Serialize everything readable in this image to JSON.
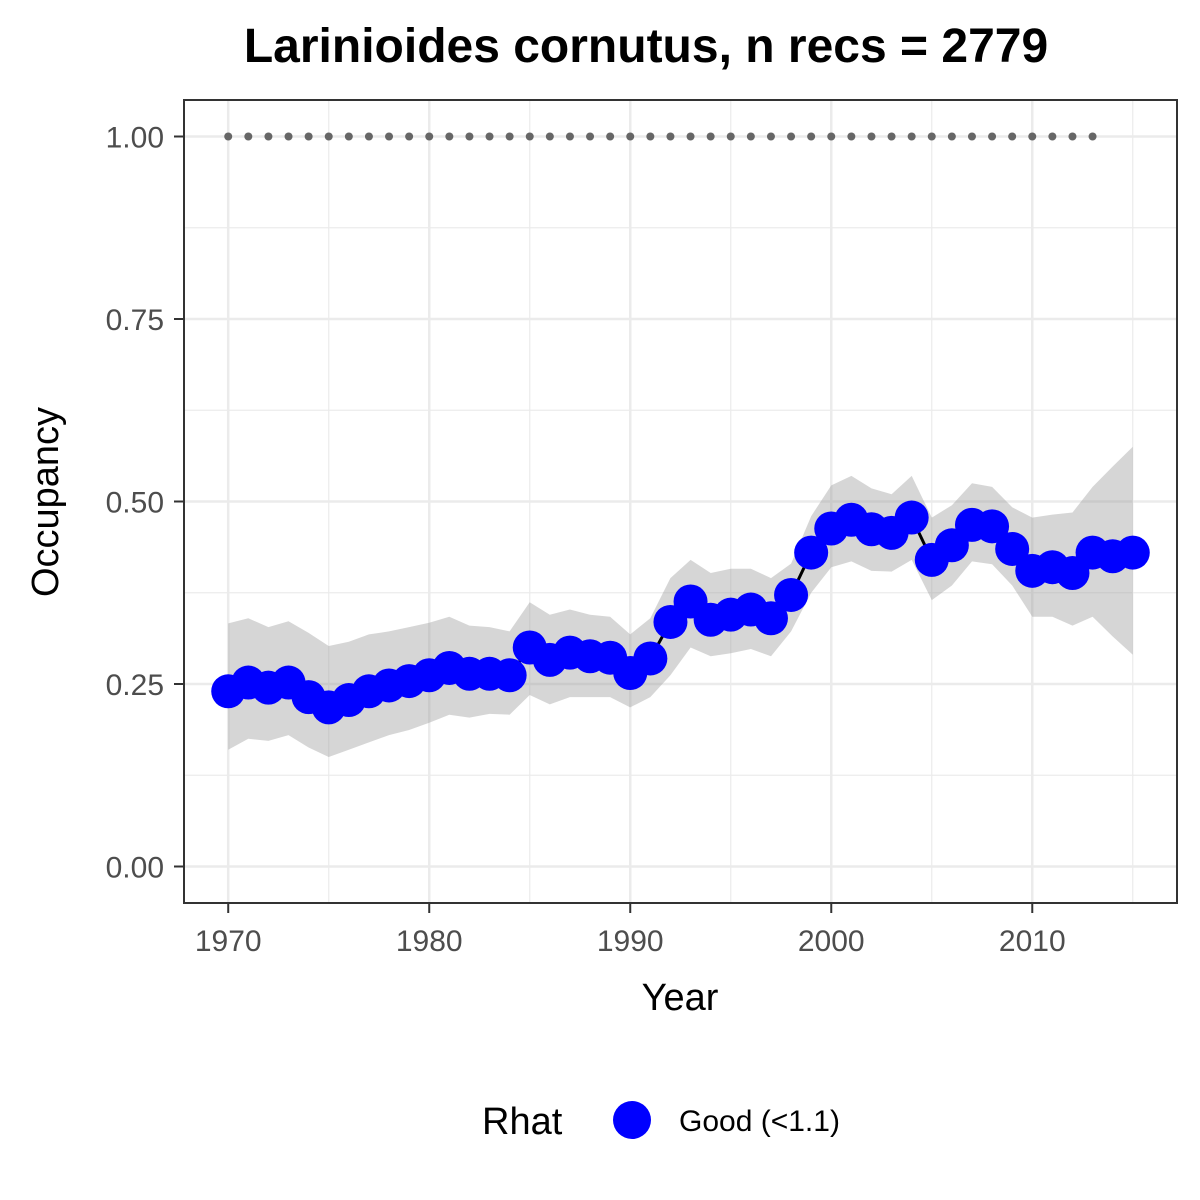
{
  "chart_data": {
    "type": "line",
    "title": "Larinioides cornutus, n recs = 2779",
    "xlabel": "Year",
    "ylabel": "Occupancy",
    "xlim": [
      1967.8,
      2017.2
    ],
    "ylim": [
      -0.05,
      1.05
    ],
    "x_ticks": [
      1970,
      1980,
      1990,
      2000,
      2010
    ],
    "x_tick_labels": [
      "1970",
      "1980",
      "1990",
      "2000",
      "2010"
    ],
    "y_ticks": [
      0,
      0.25,
      0.5,
      0.75,
      1.0
    ],
    "y_tick_labels": [
      "0.00",
      "0.25",
      "0.50",
      "0.75",
      "1.00"
    ],
    "grid": true,
    "legend": {
      "title": "Rhat",
      "position": "bottom",
      "entries": [
        {
          "label": "Good (<1.1)",
          "color": "#0000ff"
        }
      ]
    },
    "colors": {
      "points": "#0000ff",
      "line": "#000000",
      "ribbon": "#999999",
      "reference_dots": "#666666",
      "grid": "#ebebeb",
      "panel_border": "#333333"
    },
    "reference_line": {
      "y": 1.0,
      "x": [
        1970,
        1971,
        1972,
        1973,
        1974,
        1975,
        1976,
        1977,
        1978,
        1979,
        1980,
        1981,
        1982,
        1983,
        1984,
        1985,
        1986,
        1987,
        1988,
        1989,
        1990,
        1991,
        1992,
        1993,
        1994,
        1995,
        1996,
        1997,
        1998,
        1999,
        2000,
        2001,
        2002,
        2003,
        2004,
        2005,
        2006,
        2007,
        2008,
        2009,
        2010,
        2011,
        2012,
        2013
      ]
    },
    "series": [
      {
        "rhat": "Good (<1.1)",
        "x": [
          1970,
          1971,
          1972,
          1973,
          1974,
          1975,
          1976,
          1977,
          1978,
          1979,
          1980,
          1981,
          1982,
          1983,
          1984,
          1985,
          1986,
          1987,
          1988,
          1989,
          1990,
          1991,
          1992,
          1993,
          1994,
          1995,
          1996,
          1997,
          1998,
          1999,
          2000,
          2001,
          2002,
          2003,
          2004,
          2005,
          2006,
          2007,
          2008,
          2009,
          2010,
          2011,
          2012,
          2013,
          2014,
          2015
        ],
        "y": [
          0.24,
          0.252,
          0.245,
          0.252,
          0.232,
          0.218,
          0.228,
          0.24,
          0.248,
          0.254,
          0.262,
          0.272,
          0.264,
          0.264,
          0.262,
          0.3,
          0.283,
          0.293,
          0.288,
          0.286,
          0.265,
          0.285,
          0.335,
          0.363,
          0.338,
          0.345,
          0.352,
          0.34,
          0.372,
          0.43,
          0.463,
          0.475,
          0.462,
          0.457,
          0.478,
          0.42,
          0.44,
          0.468,
          0.466,
          0.435,
          0.405,
          0.41,
          0.402,
          0.43,
          0.425,
          0.43
        ],
        "lower": [
          0.16,
          0.175,
          0.172,
          0.18,
          0.163,
          0.15,
          0.16,
          0.17,
          0.18,
          0.187,
          0.197,
          0.208,
          0.204,
          0.209,
          0.208,
          0.235,
          0.222,
          0.232,
          0.232,
          0.232,
          0.218,
          0.232,
          0.262,
          0.3,
          0.288,
          0.292,
          0.298,
          0.288,
          0.322,
          0.375,
          0.41,
          0.418,
          0.405,
          0.404,
          0.42,
          0.365,
          0.385,
          0.418,
          0.414,
          0.385,
          0.342,
          0.342,
          0.33,
          0.342,
          0.315,
          0.29
        ],
        "upper": [
          0.333,
          0.34,
          0.328,
          0.336,
          0.32,
          0.302,
          0.308,
          0.318,
          0.322,
          0.328,
          0.334,
          0.342,
          0.33,
          0.328,
          0.322,
          0.362,
          0.345,
          0.352,
          0.345,
          0.342,
          0.318,
          0.34,
          0.395,
          0.42,
          0.402,
          0.408,
          0.408,
          0.395,
          0.415,
          0.48,
          0.522,
          0.535,
          0.518,
          0.51,
          0.535,
          0.478,
          0.495,
          0.525,
          0.52,
          0.492,
          0.478,
          0.482,
          0.485,
          0.52,
          0.548,
          0.575
        ]
      }
    ]
  }
}
